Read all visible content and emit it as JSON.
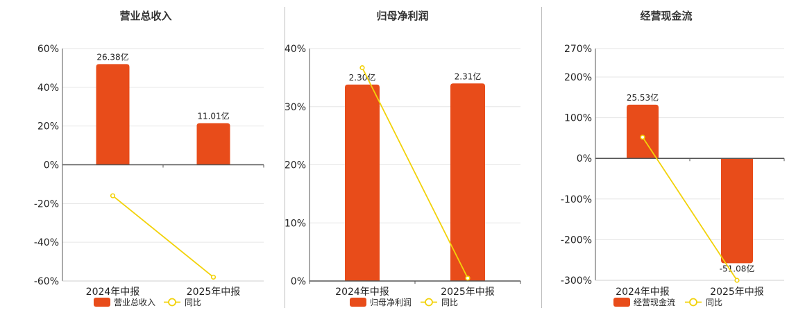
{
  "colors": {
    "bar": "#e84c1a",
    "line": "#f2d20a",
    "grid": "#e6e6e6",
    "axis": "#555555",
    "text": "#222222"
  },
  "chart_data": [
    {
      "type": "bar",
      "title": "营业总收入",
      "categories": [
        "2024年中报",
        "2025年中报"
      ],
      "yticks": [
        "60%",
        "40%",
        "20%",
        "0%",
        "-20%",
        "-40%",
        "-60%"
      ],
      "ylim": [
        -60,
        60
      ],
      "series": [
        {
          "name": "营业总收入",
          "type": "bar",
          "values": [
            52,
            21.5
          ],
          "labels": [
            "26.38亿",
            "11.01亿"
          ]
        },
        {
          "name": "同比",
          "type": "line",
          "values": [
            -16,
            -58
          ]
        }
      ],
      "legend": "bottom",
      "grid": true
    },
    {
      "type": "bar",
      "title": "归母净利润",
      "categories": [
        "2024年中报",
        "2025年中报"
      ],
      "yticks": [
        "40%",
        "30%",
        "20%",
        "10%",
        "0%"
      ],
      "ylim": [
        0,
        40
      ],
      "series": [
        {
          "name": "归母净利润",
          "type": "bar",
          "values": [
            33.8,
            34
          ],
          "labels": [
            "2.30亿",
            "2.31亿"
          ]
        },
        {
          "name": "同比",
          "type": "line",
          "values": [
            36.7,
            0.5
          ]
        }
      ],
      "legend": "bottom",
      "grid": true
    },
    {
      "type": "bar",
      "title": "经营现金流",
      "categories": [
        "2024年中报",
        "2025年中报"
      ],
      "yticks": [
        "270%",
        "200%",
        "100%",
        "0%",
        "-100%",
        "-200%",
        "-300%"
      ],
      "ylim": [
        -300,
        270
      ],
      "series": [
        {
          "name": "经营现金流",
          "type": "bar",
          "values": [
            132,
            -258
          ],
          "labels": [
            "25.53亿",
            "-51.08亿"
          ]
        },
        {
          "name": "同比",
          "type": "line",
          "values": [
            52,
            -300
          ]
        }
      ],
      "legend": "bottom",
      "grid": true
    }
  ]
}
